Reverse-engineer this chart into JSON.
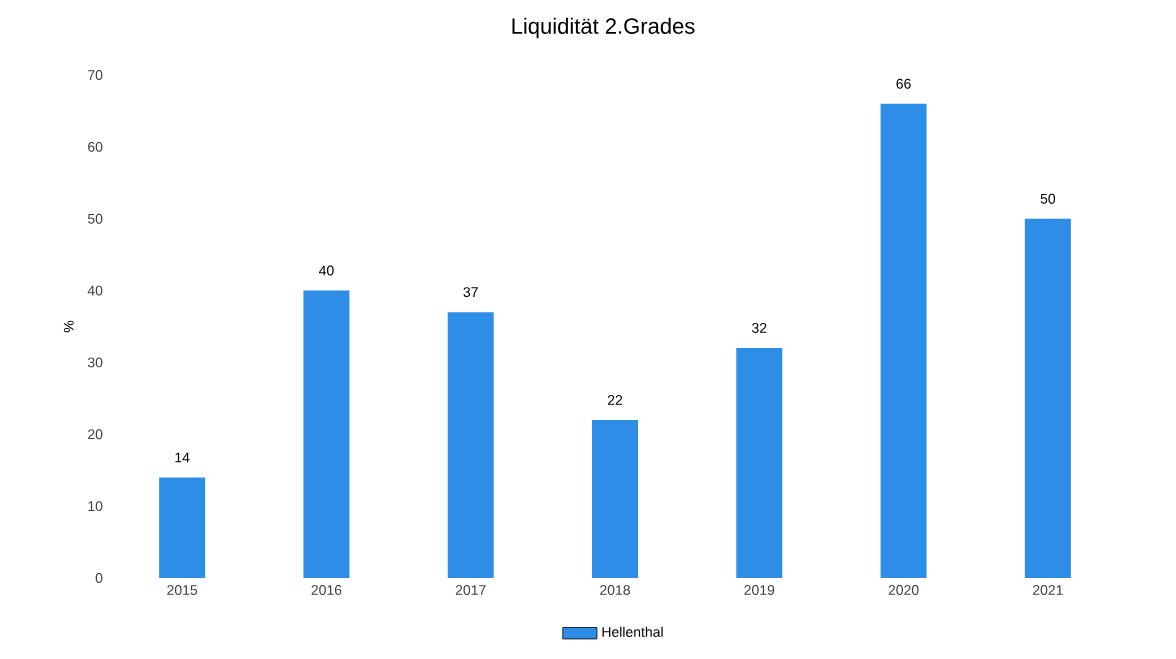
{
  "chart_data": {
    "type": "bar",
    "title": "Liquidität 2.Grades",
    "ylabel": "%",
    "categories": [
      "2015",
      "2016",
      "2017",
      "2018",
      "2019",
      "2020",
      "2021"
    ],
    "series": [
      {
        "name": "Hellenthal",
        "color": "#2e8de6",
        "values": [
          14,
          40,
          37,
          22,
          32,
          66,
          50
        ]
      }
    ],
    "ylim": [
      0,
      70
    ],
    "yticks": [
      0,
      10,
      20,
      30,
      40,
      50,
      60,
      70
    ],
    "data_labels": true,
    "legend": "bottom",
    "grid": false
  }
}
